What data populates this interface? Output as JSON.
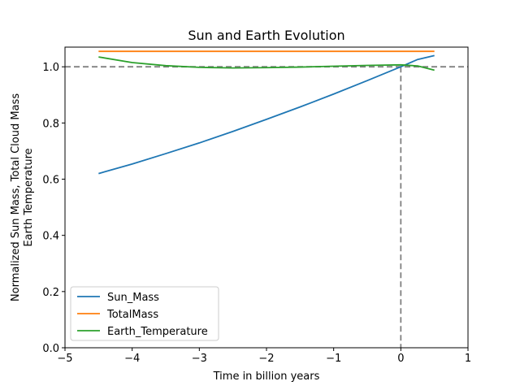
{
  "chart_data": {
    "type": "line",
    "title": "Sun and Earth Evolution",
    "xlabel": "Time in billion years",
    "ylabel_lines": [
      "Normalized Sun Mass, Total Cloud Mass",
      "Earth Temperature"
    ],
    "xlim": [
      -5,
      1
    ],
    "ylim": [
      0,
      1.07
    ],
    "xticks": [
      -5,
      -4,
      -3,
      -2,
      -1,
      0,
      1
    ],
    "xtick_labels": [
      "−5",
      "−4",
      "−3",
      "−2",
      "−1",
      "0",
      "1"
    ],
    "yticks": [
      0.0,
      0.2,
      0.4,
      0.6,
      0.8,
      1.0
    ],
    "ytick_labels": [
      "0.0",
      "0.2",
      "0.4",
      "0.6",
      "0.8",
      "1.0"
    ],
    "reference_lines": {
      "horizontal_y": 1.0,
      "vertical_x": 0,
      "color": "#808080",
      "style": "dashed"
    },
    "legend_position": "lower-left",
    "grid": false,
    "series": [
      {
        "name": "Sun_Mass",
        "color": "#1f77b4",
        "x": [
          -4.5,
          -4.0,
          -3.5,
          -3.0,
          -2.5,
          -2.0,
          -1.5,
          -1.0,
          -0.5,
          0.0,
          0.25,
          0.5
        ],
        "y": [
          0.62,
          0.654,
          0.691,
          0.729,
          0.77,
          0.813,
          0.857,
          0.903,
          0.951,
          1.0,
          1.026,
          1.04
        ]
      },
      {
        "name": "TotalMass",
        "color": "#ff7f0e",
        "x": [
          -4.5,
          0.5
        ],
        "y": [
          1.055,
          1.055
        ]
      },
      {
        "name": "Earth_Temperature",
        "color": "#2ca02c",
        "x": [
          -4.5,
          -4.0,
          -3.5,
          -3.0,
          -2.5,
          -2.0,
          -1.5,
          -1.0,
          -0.5,
          0.0,
          0.25,
          0.5
        ],
        "y": [
          1.035,
          1.015,
          1.004,
          0.998,
          0.996,
          0.997,
          0.999,
          1.002,
          1.005,
          1.007,
          1.003,
          0.988
        ]
      }
    ]
  }
}
